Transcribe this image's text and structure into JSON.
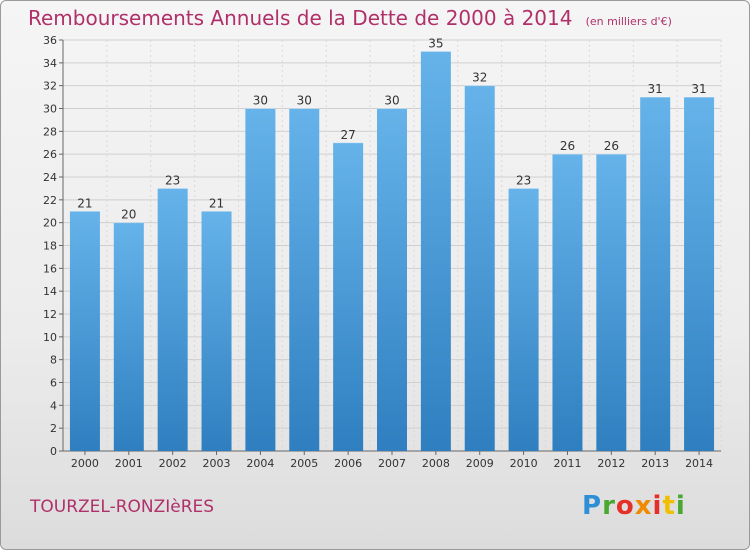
{
  "title": "Remboursements Annuels de la Dette de 2000 à 2014",
  "subtitle": "(en milliers d'€)",
  "commune": "TOURZEL-RONZIèRES",
  "logo": {
    "letters": [
      "P",
      "r",
      "o",
      "x",
      "i",
      "t",
      "i"
    ],
    "colors": [
      "#2f8fd6",
      "#4aa832",
      "#e5302a",
      "#f08a00",
      "#e5302a",
      "#f0c000",
      "#4aa832"
    ]
  },
  "colors": {
    "bar_light": "#66b3ea",
    "bar_dark": "#2f7fc0",
    "accent": "#b0306a"
  },
  "chart_data": {
    "type": "bar",
    "categories": [
      "2000",
      "2001",
      "2002",
      "2003",
      "2004",
      "2005",
      "2006",
      "2007",
      "2008",
      "2009",
      "2010",
      "2011",
      "2012",
      "2013",
      "2014"
    ],
    "values": [
      21,
      20,
      23,
      21,
      30,
      30,
      27,
      30,
      35,
      32,
      23,
      26,
      26,
      31,
      31
    ],
    "ylim": [
      0,
      36
    ],
    "yticks": [
      0,
      2,
      4,
      6,
      8,
      10,
      12,
      14,
      16,
      18,
      20,
      22,
      24,
      26,
      28,
      30,
      32,
      34,
      36
    ],
    "grid": true,
    "xlabel": "",
    "ylabel": ""
  }
}
